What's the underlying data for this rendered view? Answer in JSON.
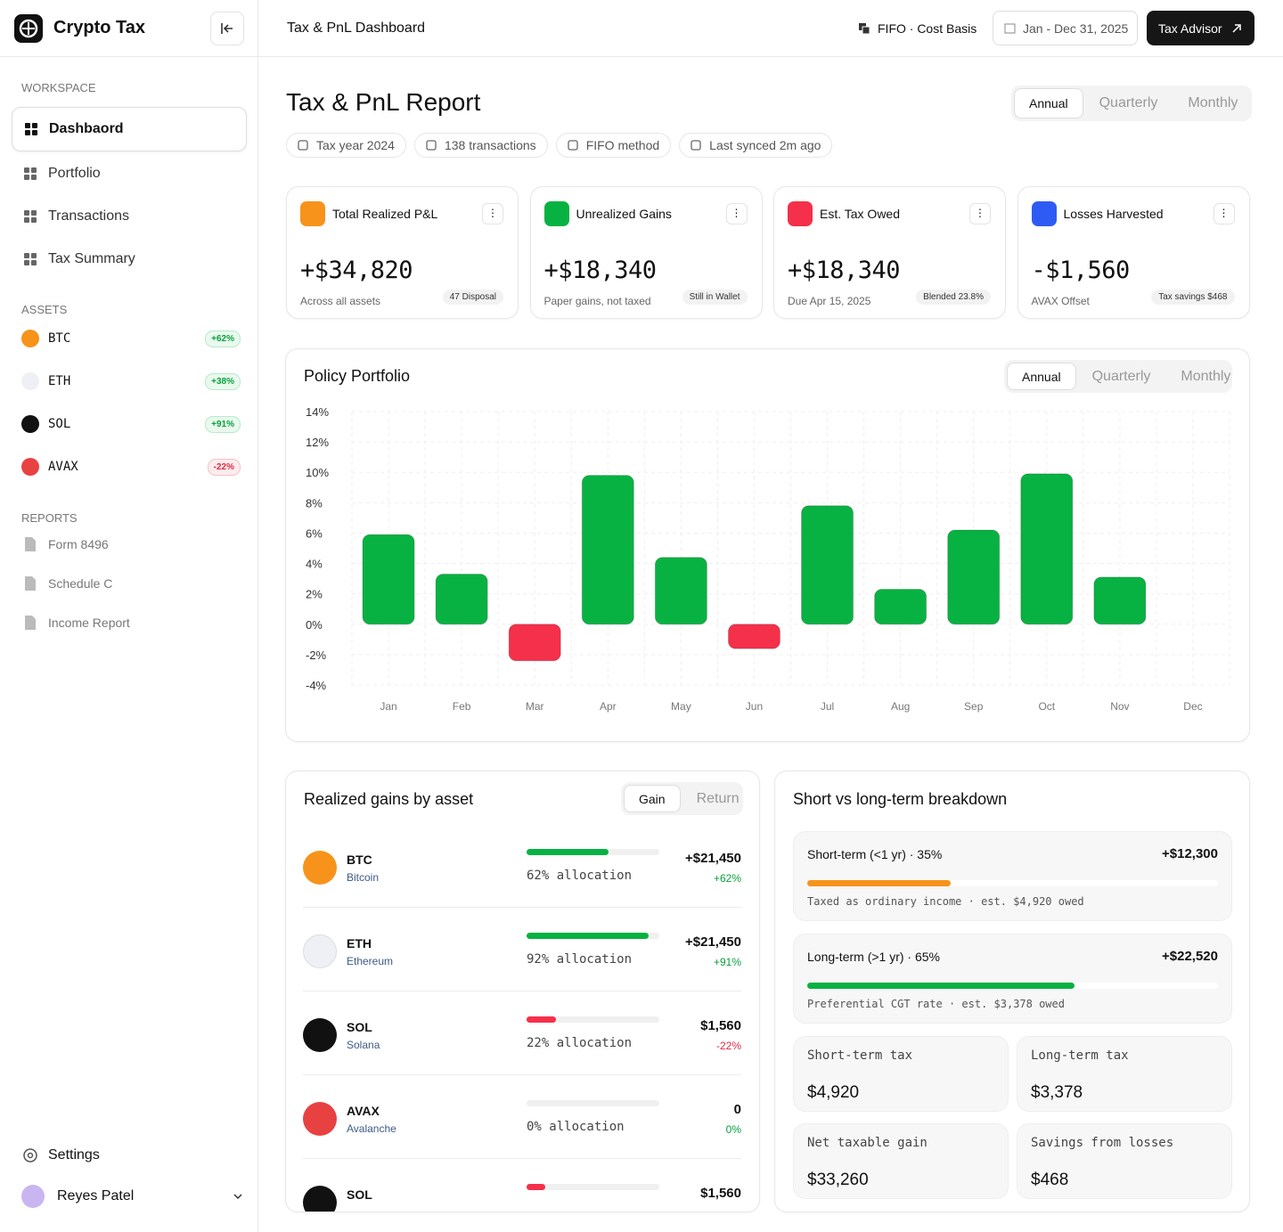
{
  "sidebar": {
    "brand": "Crypto Tax",
    "workspace_label": "WORKSPACE",
    "nav": [
      "Dashbaord",
      "Portfolio",
      "Transactions",
      "Tax Summary"
    ],
    "assets_label": "ASSETS",
    "assets": [
      {
        "symbol": "BTC",
        "change": 62,
        "change_label": "+62%"
      },
      {
        "symbol": "ETH",
        "change": 38,
        "change_label": "+38%"
      },
      {
        "symbol": "SOL",
        "change": 91,
        "change_label": "+91%"
      },
      {
        "symbol": "AVAX",
        "change": -22,
        "change_label": "-22%"
      }
    ],
    "reports_label": "REPORTS",
    "reports": [
      "Form 8496",
      "Schedule C",
      "Income Report"
    ],
    "settings": "Settings",
    "user": "Reyes Patel"
  },
  "topbar": {
    "title": "Tax & PnL Dashboard",
    "method": "FIFO · Cost Basis",
    "date_range": "Jan - Dec 31, 2025",
    "cta": "Tax Advisor"
  },
  "report": {
    "title": "Tax & PnL Report",
    "tabs": [
      "Annual",
      "Quarterly",
      "Monthly"
    ],
    "active_tab": 0,
    "chips": [
      "Tax year 2024",
      "138 transactions",
      "FIFO method",
      "Last synced 2m ago"
    ]
  },
  "kpis": [
    {
      "title": "Total Realized P&L",
      "value": "+$34,820",
      "note": "Across all assets",
      "badge": "47 Disposal"
    },
    {
      "title": "Unrealized Gains",
      "value": "+$18,340",
      "note": "Paper gains, not taxed",
      "badge": "Still in Wallet"
    },
    {
      "title": "Est. Tax Owed",
      "value": "+$18,340",
      "note": "Due Apr 15, 2025",
      "badge": "Blended 23.8%"
    },
    {
      "title": "Losses Harvested",
      "value": "-$1,560",
      "note": "AVAX Offset",
      "badge": "Tax savings $468"
    }
  ],
  "chart_data": {
    "type": "bar",
    "title": "Policy Portfolio",
    "tabs": [
      "Annual",
      "Quarterly",
      "Monthly"
    ],
    "active_tab": 0,
    "categories": [
      "Jan",
      "Feb",
      "Mar",
      "Apr",
      "May",
      "Jun",
      "Jul",
      "Aug",
      "Sep",
      "Oct",
      "Nov",
      "Dec"
    ],
    "values": [
      5.9,
      3.3,
      -2.4,
      9.8,
      4.4,
      -1.6,
      7.8,
      2.3,
      6.2,
      9.9,
      3.1,
      null
    ],
    "ylim": [
      -4,
      14
    ],
    "yticks": [
      {
        "value": 14,
        "label": "14%"
      },
      {
        "value": 12,
        "label": "12%"
      },
      {
        "value": 10,
        "label": "10%"
      },
      {
        "value": 8,
        "label": "8%"
      },
      {
        "value": 6,
        "label": "6%"
      },
      {
        "value": 4,
        "label": "4%"
      },
      {
        "value": 2,
        "label": "2%"
      },
      {
        "value": 0,
        "label": "0%"
      },
      {
        "value": -2,
        "label": "-2%"
      },
      {
        "value": -4,
        "label": "-4%"
      }
    ],
    "positive_color": "#08b242",
    "negative_color": "#f5304a",
    "grid": true
  },
  "gains": {
    "title": "Realized gains by asset",
    "tabs": [
      "Gain",
      "Return"
    ],
    "active_tab": 0,
    "rows": [
      {
        "symbol": "BTC",
        "name": "Bitcoin",
        "allocation": 62,
        "allocation_label": "62% allocation",
        "gain": "+$21,450",
        "return": 62,
        "return_label": "+62%"
      },
      {
        "symbol": "ETH",
        "name": "Ethereum",
        "allocation": 92,
        "allocation_label": "92% allocation",
        "gain": "+$21,450",
        "return": 91,
        "return_label": "+91%"
      },
      {
        "symbol": "SOL",
        "name": "Solana",
        "allocation": 22,
        "allocation_label": "22% allocation",
        "gain": "$1,560",
        "return": -22,
        "return_label": "-22%"
      },
      {
        "symbol": "AVAX",
        "name": "Avalanche",
        "allocation": 0,
        "allocation_label": "0% allocation",
        "gain": "0",
        "return": 0,
        "return_label": "0%"
      },
      {
        "symbol": "SOL",
        "allocation": 14,
        "gain": "$1,560"
      }
    ]
  },
  "breakdown": {
    "title": "Short vs long-term breakdown",
    "terms": [
      {
        "label": "Short-term (<1 yr) · 35%",
        "value": "+$12,300",
        "share": 35,
        "color": "#f7931a",
        "note": "Taxed as ordinary income · est. $4,920 owed"
      },
      {
        "label": "Long-term (>1 yr) · 65%",
        "value": "+$22,520",
        "share": 65,
        "color": "#08b242",
        "note": "Preferential CGT rate · est. $3,378 owed"
      }
    ],
    "stats": [
      {
        "label": "Short-term tax",
        "value": "$4,920"
      },
      {
        "label": "Long-term tax",
        "value": "$3,378"
      },
      {
        "label": "Net taxable gain",
        "value": "$33,260"
      },
      {
        "label": "Savings from losses",
        "value": "$468"
      }
    ]
  }
}
